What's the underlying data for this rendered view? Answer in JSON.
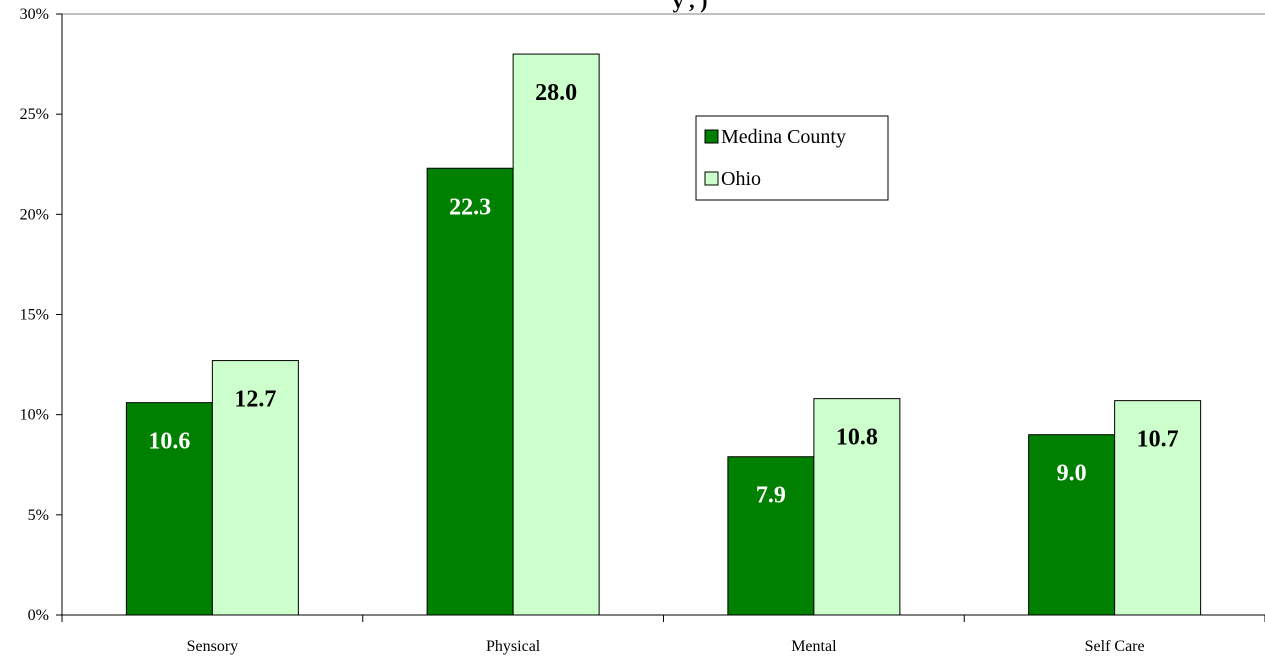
{
  "chart_data": {
    "type": "bar",
    "title_fragment": "y , )",
    "categories": [
      "Sensory",
      "Physical",
      "Mental",
      "Self Care"
    ],
    "series": [
      {
        "name": "Medina County",
        "color": "#008000",
        "label_color": "#ffffff",
        "values": [
          10.6,
          22.3,
          7.9,
          9.0
        ],
        "labels": [
          "10.6",
          "22.3",
          "7.9",
          "9.0"
        ]
      },
      {
        "name": "Ohio",
        "color": "#ccffcc",
        "label_color": "#000000",
        "values": [
          12.7,
          28.0,
          10.8,
          10.7
        ],
        "labels": [
          "12.7",
          "28.0",
          "10.8",
          "10.7"
        ]
      }
    ],
    "ylim": [
      0,
      30
    ],
    "yticks": [
      0,
      5,
      10,
      15,
      20,
      25,
      30
    ],
    "ytick_labels": [
      "0%",
      "5%",
      "10%",
      "15%",
      "20%",
      "25%",
      "30%"
    ],
    "xlabel": "",
    "ylabel": "",
    "grid": false,
    "legend": "top-right"
  }
}
